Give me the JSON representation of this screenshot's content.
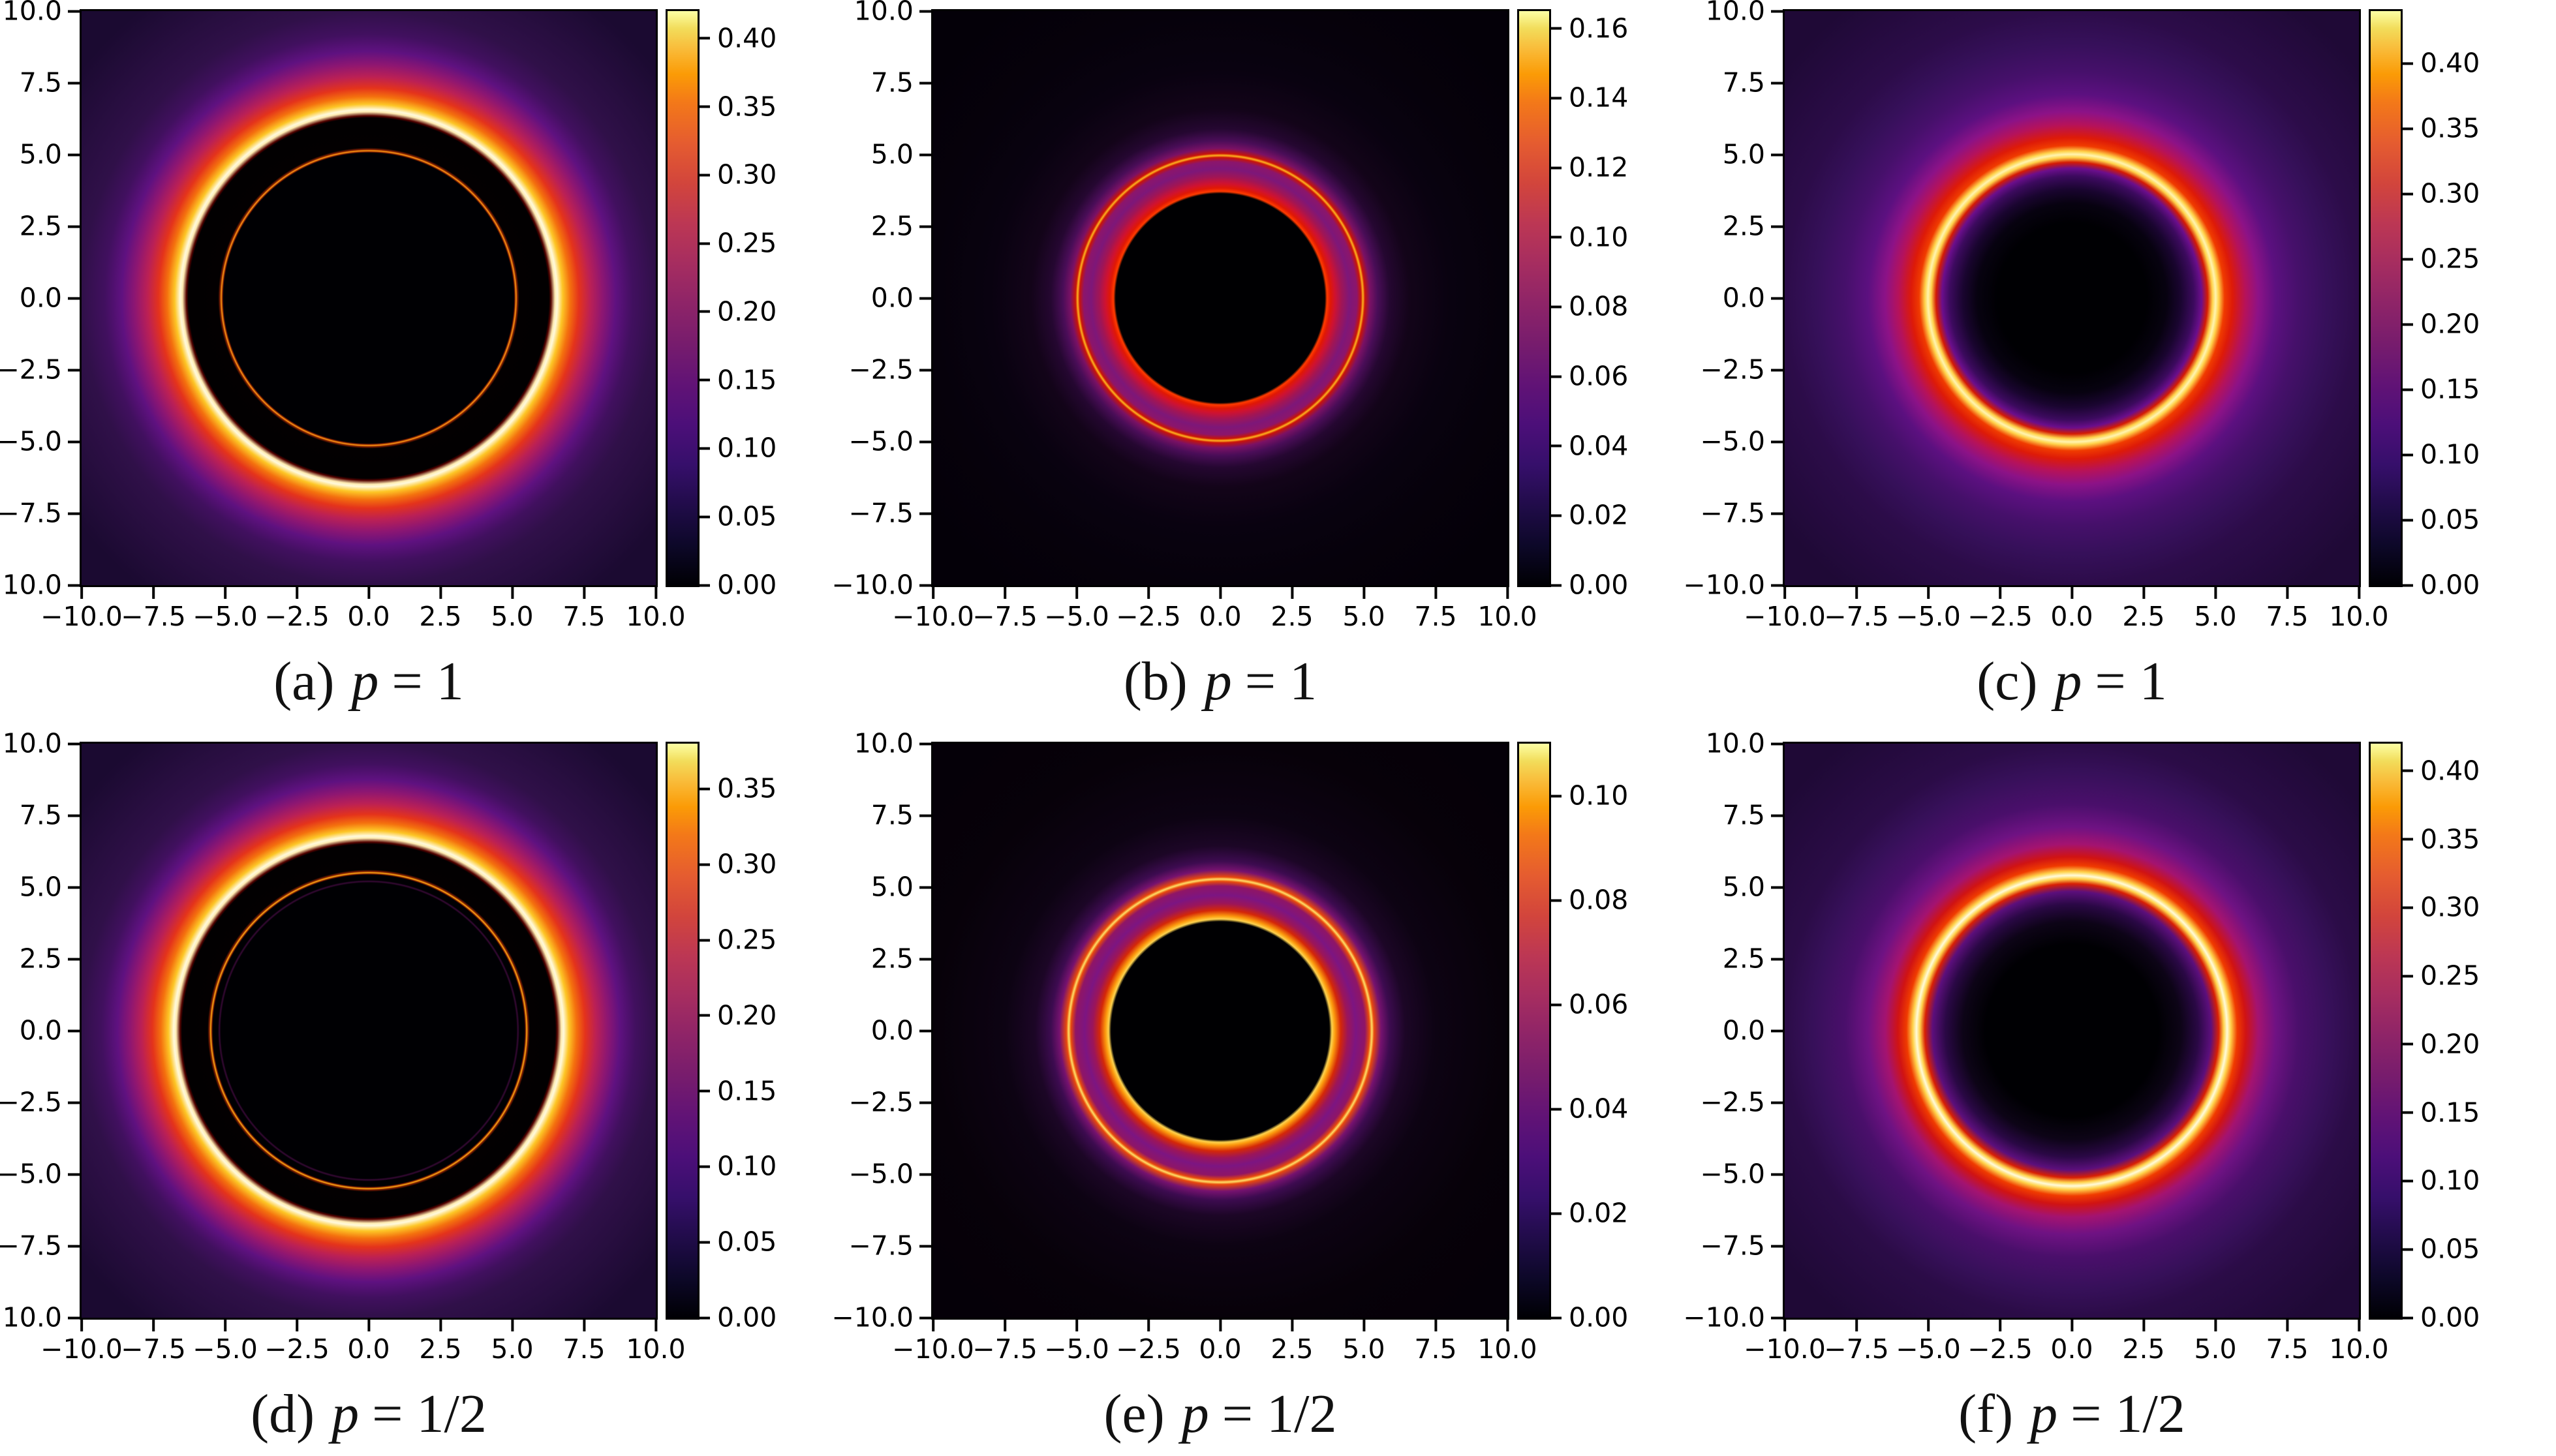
{
  "figure": {
    "description": "Six black-hole shadow intensity heatmaps arranged 2 rows x 3 columns, inferno colormap, each with its own colorbar",
    "colormap": "inferno",
    "background_color": "#ffffff",
    "accent_colors": {
      "ring_peak_white": "#fff9dc",
      "ring_yellow": "#fdc626",
      "ring_orange": "#f4710e",
      "ring_red": "#e4331b",
      "halo_purple": "#5f1180",
      "shadow_black": "#000003"
    }
  },
  "chart_data": [
    {
      "type": "heatmap",
      "panel": "a",
      "title": "(a) p = 1",
      "caption_index": "(a)",
      "caption_var": "p",
      "caption_rest": "= 1",
      "xlim": [
        -10,
        10
      ],
      "ylim": [
        -10,
        10
      ],
      "x_tick_labels": [
        "−10.0",
        "−7.5",
        "−5.0",
        "−2.5",
        "0.0",
        "2.5",
        "5.0",
        "7.5",
        "10.0"
      ],
      "y_tick_labels": [
        "10.0",
        "7.5",
        "5.0",
        "2.5",
        "0.0",
        "−2.5",
        "−5.0",
        "−7.5",
        "−10.0"
      ],
      "colorbar_tick_values": [
        0.0,
        0.05,
        0.1,
        0.15,
        0.2,
        0.25,
        0.3,
        0.35,
        0.4
      ],
      "colorbar_tick_labels": [
        "0.00",
        "0.05",
        "0.10",
        "0.15",
        "0.20",
        "0.25",
        "0.30",
        "0.35",
        "0.40"
      ],
      "colorbar_range": [
        0,
        0.42
      ],
      "features": {
        "structure": "large black shadow annulus, thin inner photon ring, bright white-yellow outer emission ring fading to purple halo",
        "thin_photon_ring_radius": 5.15,
        "shadow_outer_edge_radius": 6.35,
        "bright_ring_peak_radius": 6.6,
        "peak_intensity": 0.42
      }
    },
    {
      "type": "heatmap",
      "panel": "b",
      "title": "(b) p = 1",
      "caption_index": "(b)",
      "caption_var": "p",
      "caption_rest": "= 1",
      "xlim": [
        -10,
        10
      ],
      "ylim": [
        -10,
        10
      ],
      "x_tick_labels": [
        "−10.0",
        "−7.5",
        "−5.0",
        "−2.5",
        "0.0",
        "2.5",
        "5.0",
        "7.5",
        "10.0"
      ],
      "y_tick_labels": [
        "10.0",
        "7.5",
        "5.0",
        "2.5",
        "0.0",
        "−2.5",
        "−5.0",
        "−7.5",
        "−10.0"
      ],
      "colorbar_tick_values": [
        0.0,
        0.02,
        0.04,
        0.06,
        0.08,
        0.1,
        0.12,
        0.14,
        0.16
      ],
      "colorbar_tick_labels": [
        "0.00",
        "0.02",
        "0.04",
        "0.06",
        "0.08",
        "0.10",
        "0.12",
        "0.14",
        "0.16"
      ],
      "colorbar_range": [
        0,
        0.165
      ],
      "features": {
        "structure": "small black disk with bright red rim, purple annulus, thin orange photon ring, near-black background",
        "black_disk_radius": 3.65,
        "thin_photon_ring_radius": 5.0,
        "peak_intensity": 0.165
      }
    },
    {
      "type": "heatmap",
      "panel": "c",
      "title": "(c) p = 1",
      "caption_index": "(c)",
      "caption_var": "p",
      "caption_rest": "= 1",
      "xlim": [
        -10,
        10
      ],
      "ylim": [
        -10,
        10
      ],
      "x_tick_labels": [
        "−10.0",
        "−7.5",
        "−5.0",
        "−2.5",
        "0.0",
        "2.5",
        "5.0",
        "7.5",
        "10.0"
      ],
      "y_tick_labels": [
        "10.0",
        "7.5",
        "5.0",
        "2.5",
        "0.0",
        "−2.5",
        "−5.0",
        "−7.5",
        "−10.0"
      ],
      "colorbar_tick_values": [
        0.0,
        0.05,
        0.1,
        0.15,
        0.2,
        0.25,
        0.3,
        0.35,
        0.4
      ],
      "colorbar_tick_labels": [
        "0.00",
        "0.05",
        "0.10",
        "0.15",
        "0.20",
        "0.25",
        "0.30",
        "0.35",
        "0.40"
      ],
      "colorbar_range": [
        0,
        0.44
      ],
      "features": {
        "structure": "diffuse dark center (no sharp shadow edge), single thick bright yellow ring, broad purple halo",
        "bright_ring_peak_radius": 5.05,
        "peak_intensity": 0.44
      }
    },
    {
      "type": "heatmap",
      "panel": "d",
      "title": "(d) p = 1/2",
      "caption_index": "(d)",
      "caption_var": "p",
      "caption_rest": "= 1/2",
      "xlim": [
        -10,
        10
      ],
      "ylim": [
        -10,
        10
      ],
      "x_tick_labels": [
        "−10.0",
        "−7.5",
        "−5.0",
        "−2.5",
        "0.0",
        "2.5",
        "5.0",
        "7.5",
        "10.0"
      ],
      "y_tick_labels": [
        "10.0",
        "7.5",
        "5.0",
        "2.5",
        "0.0",
        "−2.5",
        "−5.0",
        "−7.5",
        "−10.0"
      ],
      "colorbar_tick_values": [
        0.0,
        0.05,
        0.1,
        0.15,
        0.2,
        0.25,
        0.3,
        0.35
      ],
      "colorbar_tick_labels": [
        "0.00",
        "0.05",
        "0.10",
        "0.15",
        "0.20",
        "0.25",
        "0.30",
        "0.35"
      ],
      "colorbar_range": [
        0,
        0.38
      ],
      "features": {
        "structure": "large black shadow annulus, thin orange photon ring plus fainter inner magenta ring, bright outer emission ring fading to purple halo",
        "faint_inner_ring_radius": 5.2,
        "thin_photon_ring_radius": 5.5,
        "shadow_outer_edge_radius": 6.55,
        "bright_ring_peak_radius": 6.75,
        "peak_intensity": 0.38
      }
    },
    {
      "type": "heatmap",
      "panel": "e",
      "title": "(e) p = 1/2",
      "caption_index": "(e)",
      "caption_var": "p",
      "caption_rest": "= 1/2",
      "xlim": [
        -10,
        10
      ],
      "ylim": [
        -10,
        10
      ],
      "x_tick_labels": [
        "−10.0",
        "−7.5",
        "−5.0",
        "−2.5",
        "0.0",
        "2.5",
        "5.0",
        "7.5",
        "10.0"
      ],
      "y_tick_labels": [
        "10.0",
        "7.5",
        "5.0",
        "2.5",
        "0.0",
        "−2.5",
        "−5.0",
        "−7.5",
        "−10.0"
      ],
      "colorbar_tick_values": [
        0.0,
        0.02,
        0.04,
        0.06,
        0.08,
        0.1
      ],
      "colorbar_tick_labels": [
        "0.00",
        "0.02",
        "0.04",
        "0.06",
        "0.08",
        "0.10"
      ],
      "colorbar_range": [
        0,
        0.11
      ],
      "features": {
        "structure": "small black disk with bright yellow-orange rim, purple annulus, thin bright yellow photon ring, near-black background",
        "black_disk_radius": 3.8,
        "thin_photon_ring_radius": 5.25,
        "peak_intensity": 0.11
      }
    },
    {
      "type": "heatmap",
      "panel": "f",
      "title": "(f) p = 1/2",
      "caption_index": "(f)",
      "caption_var": "p",
      "caption_rest": "= 1/2",
      "xlim": [
        -10,
        10
      ],
      "ylim": [
        -10,
        10
      ],
      "x_tick_labels": [
        "−10.0",
        "−7.5",
        "−5.0",
        "−2.5",
        "0.0",
        "2.5",
        "5.0",
        "7.5",
        "10.0"
      ],
      "y_tick_labels": [
        "10.0",
        "7.5",
        "5.0",
        "2.5",
        "0.0",
        "−2.5",
        "−5.0",
        "−7.5",
        "−10.0"
      ],
      "colorbar_tick_values": [
        0.0,
        0.05,
        0.1,
        0.15,
        0.2,
        0.25,
        0.3,
        0.35,
        0.4
      ],
      "colorbar_tick_labels": [
        "0.00",
        "0.05",
        "0.10",
        "0.15",
        "0.20",
        "0.25",
        "0.30",
        "0.35",
        "0.40"
      ],
      "colorbar_range": [
        0,
        0.42
      ],
      "features": {
        "structure": "diffuse dark center, thick bright yellow ring with near-white core, broad purple halo",
        "bright_ring_peak_radius": 5.4,
        "peak_intensity": 0.42
      }
    }
  ]
}
